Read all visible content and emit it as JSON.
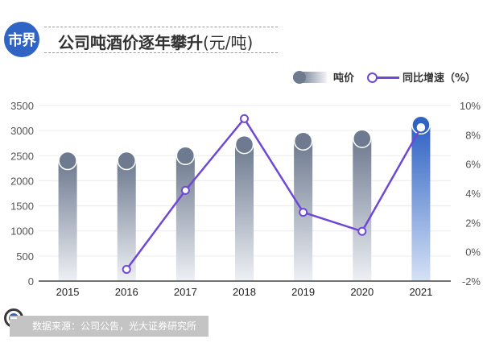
{
  "header": {
    "logo_text": "市界",
    "title": "公司吨酒价逐年攀升",
    "title_unit": "(元/吨)"
  },
  "legend": {
    "bar_label": "吨价",
    "line_label": "同比增速（%）"
  },
  "footer": {
    "source": "数据来源：公司公告，光大证券研究所"
  },
  "colors": {
    "bar_top": "#6e7a90",
    "bar_bottom": "#eef0f4",
    "bar_highlight_top": "#2f63c4",
    "bar_highlight_bottom": "#d6e2f6",
    "line": "#6f48d6",
    "logo": "#2f63c4"
  },
  "chart_data": {
    "type": "bar+line",
    "title": "公司吨酒价逐年攀升(元/吨)",
    "categories": [
      "2015",
      "2016",
      "2017",
      "2018",
      "2019",
      "2020",
      "2021"
    ],
    "series": [
      {
        "name": "吨价",
        "type": "bar",
        "axis": "left",
        "values": [
          2400,
          2400,
          2500,
          2720,
          2790,
          2840,
          3110
        ]
      },
      {
        "name": "同比增速（%）",
        "type": "line",
        "axis": "right",
        "values": [
          null,
          -1.2,
          4.2,
          9.1,
          2.7,
          1.4,
          8.5
        ]
      }
    ],
    "left_axis": {
      "min": 0,
      "max": 3500,
      "ticks": [
        "0",
        "500",
        "1000",
        "1500",
        "2000",
        "2500",
        "3000",
        "3500"
      ]
    },
    "right_axis": {
      "min": -2,
      "max": 10,
      "ticks": [
        "-2%",
        "0%",
        "2%",
        "4%",
        "6%",
        "8%",
        "10%"
      ]
    },
    "highlight_category": "2021",
    "grid": true,
    "legend_position": "top-right"
  }
}
